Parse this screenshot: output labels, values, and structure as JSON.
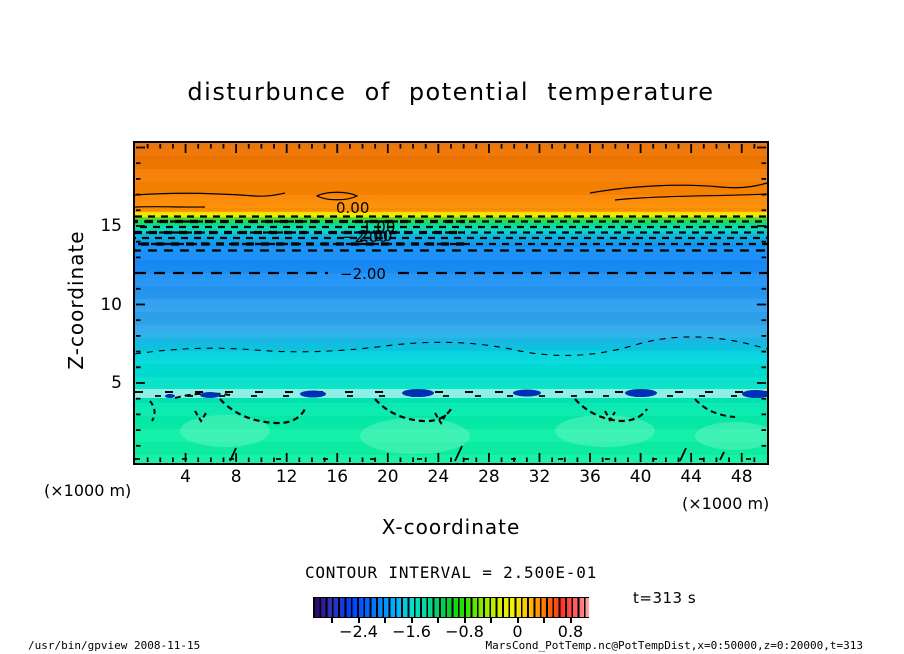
{
  "title": "disturbunce of potential temperature",
  "axes": {
    "y_label": "Z-coordinate",
    "x_label": "X-coordinate",
    "left_unit": "(×1000 m)",
    "right_unit": "(×1000 m)",
    "x_tick_values": [
      4,
      8,
      12,
      16,
      20,
      24,
      28,
      32,
      36,
      40,
      44,
      48
    ],
    "y_tick_values": [
      15,
      10,
      5
    ]
  },
  "contour_labels": {
    "zero": "0.00",
    "cluster_a": "1.00",
    "cluster_b": "2.00",
    "minus_two": "−2.00"
  },
  "contour_note": "CONTOUR INTERVAL = 2.500E-01",
  "colorbar": {
    "tick_labels": [
      "−2.4",
      "−1.6",
      "−0.8",
      "0",
      "0.8"
    ],
    "tick_values": [
      -2.4,
      -1.6,
      -0.8,
      0,
      0.8
    ]
  },
  "time_label": "t=313 s",
  "footer": {
    "left": "/usr/bin/gpview  2008-11-15",
    "right": "MarsCond_PotTemp.nc@PotTempDist,x=0:50000,z=0:20000,t=313"
  },
  "chart_data": {
    "type": "heatmap",
    "subtype": "filled-contour",
    "title": "disturbunce of potential temperature",
    "xlabel": "X-coordinate",
    "ylabel": "Z-coordinate",
    "x_unit": "×1000 m",
    "z_unit": "×1000 m",
    "x_range": [
      0,
      50
    ],
    "z_range": [
      0,
      20
    ],
    "contour_interval": 0.25,
    "colorbar_ticks": [
      -2.4,
      -1.6,
      -0.8,
      0,
      0.8
    ],
    "colorbar_range_approx": [
      -3.1,
      1.1
    ],
    "labeled_contours": [
      0.0,
      1.0,
      2.0,
      -2.0
    ],
    "time": 313,
    "mean_profile_approx": {
      "z_x1000m": [
        20,
        18,
        16,
        15.5,
        15,
        14.5,
        14,
        12,
        10,
        8,
        6,
        4,
        2,
        0
      ],
      "theta_disturbance": [
        0.9,
        0.8,
        0.4,
        0.0,
        -0.8,
        -1.5,
        -1.9,
        -2.0,
        -2.3,
        -1.7,
        -1.4,
        -1.2,
        -1.0,
        -1.0
      ]
    },
    "legend_position": "bottom-colorbar",
    "grid": false
  }
}
